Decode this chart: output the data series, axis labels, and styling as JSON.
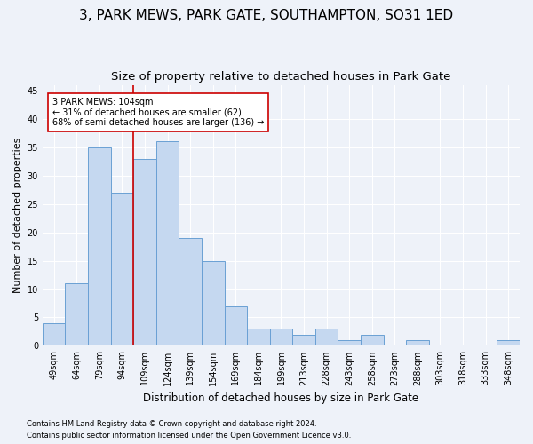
{
  "title1": "3, PARK MEWS, PARK GATE, SOUTHAMPTON, SO31 1ED",
  "title2": "Size of property relative to detached houses in Park Gate",
  "xlabel": "Distribution of detached houses by size in Park Gate",
  "ylabel": "Number of detached properties",
  "categories": [
    "49sqm",
    "64sqm",
    "79sqm",
    "94sqm",
    "109sqm",
    "124sqm",
    "139sqm",
    "154sqm",
    "169sqm",
    "184sqm",
    "199sqm",
    "213sqm",
    "228sqm",
    "243sqm",
    "258sqm",
    "273sqm",
    "288sqm",
    "303sqm",
    "318sqm",
    "333sqm",
    "348sqm"
  ],
  "values": [
    4,
    11,
    35,
    27,
    33,
    36,
    19,
    15,
    7,
    3,
    3,
    2,
    3,
    1,
    2,
    0,
    1,
    0,
    0,
    0,
    1
  ],
  "bar_color": "#c5d8f0",
  "bar_edge_color": "#6aa0d4",
  "vline_x": 3.5,
  "vline_color": "#cc0000",
  "annotation_text": "3 PARK MEWS: 104sqm\n← 31% of detached houses are smaller (62)\n68% of semi-detached houses are larger (136) →",
  "annotation_box_color": "#ffffff",
  "annotation_box_edge": "#cc0000",
  "ylim": [
    0,
    46
  ],
  "yticks": [
    0,
    5,
    10,
    15,
    20,
    25,
    30,
    35,
    40,
    45
  ],
  "footer1": "Contains HM Land Registry data © Crown copyright and database right 2024.",
  "footer2": "Contains public sector information licensed under the Open Government Licence v3.0.",
  "bg_color": "#eef2f9",
  "grid_color": "#ffffff",
  "title1_fontsize": 11,
  "title2_fontsize": 9.5,
  "tick_fontsize": 7,
  "ylabel_fontsize": 8,
  "xlabel_fontsize": 8.5,
  "footer_fontsize": 6
}
